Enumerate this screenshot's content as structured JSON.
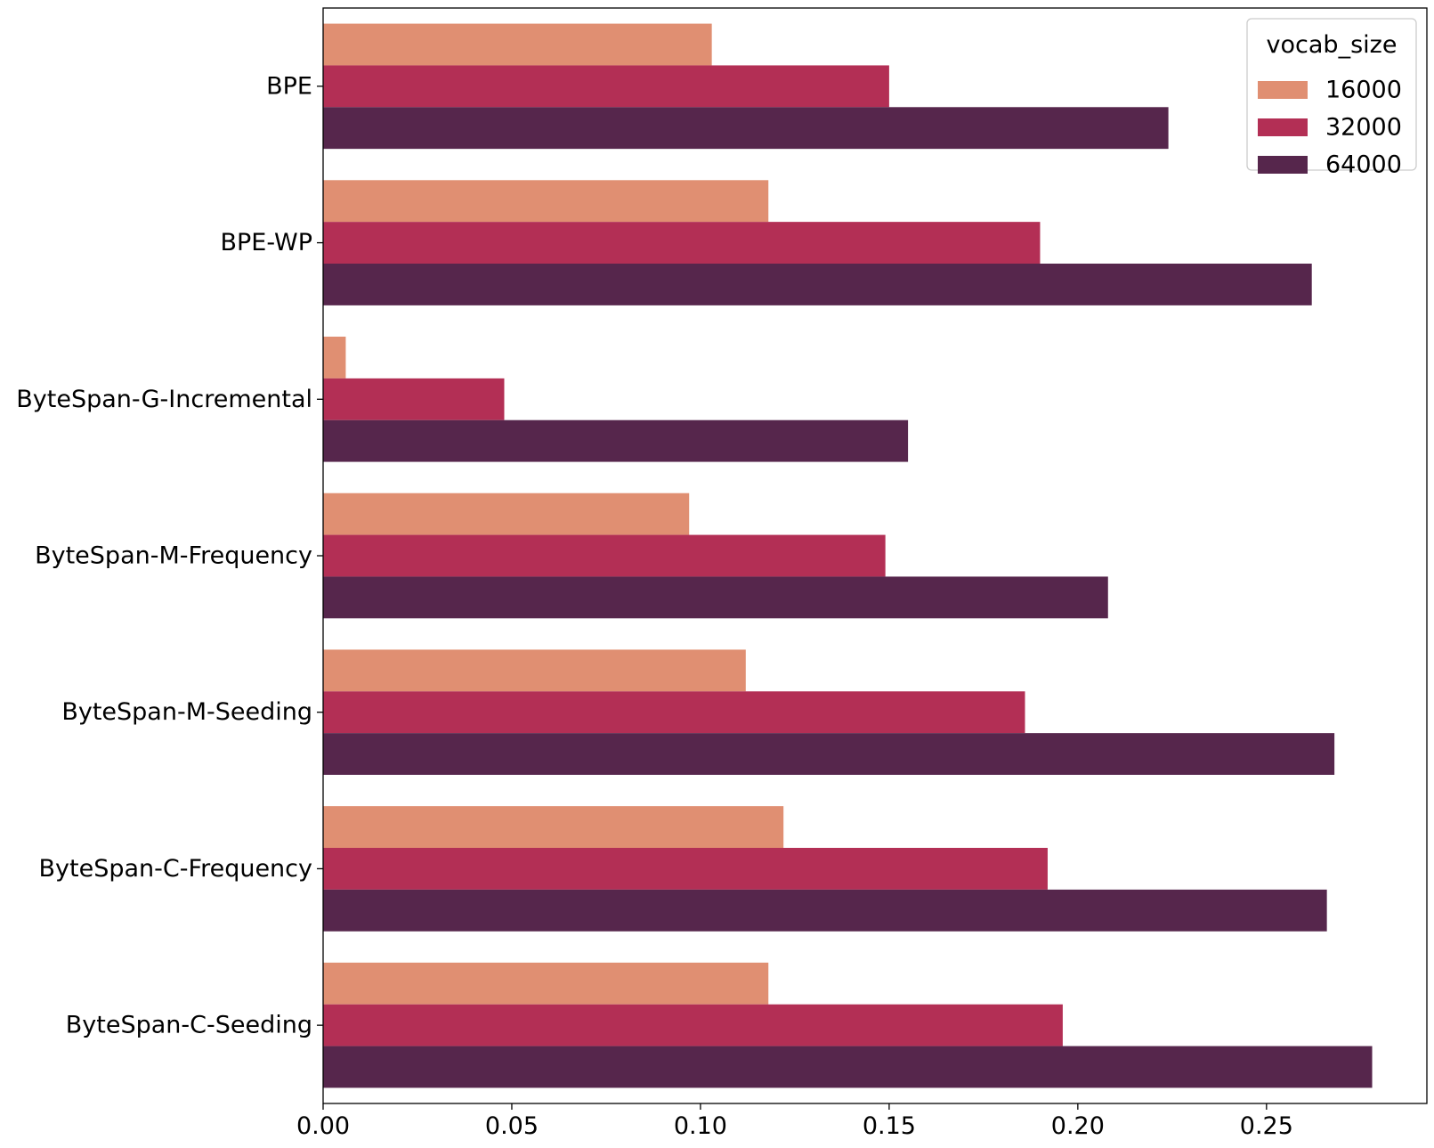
{
  "chart_data": {
    "type": "bar",
    "orientation": "horizontal",
    "title": "",
    "xlabel": "",
    "ylabel": "",
    "xlim": [
      0,
      0.2925
    ],
    "x_ticks": [
      0.0,
      0.05,
      0.1,
      0.15,
      0.2,
      0.25
    ],
    "x_tick_labels": [
      "0.00",
      "0.05",
      "0.10",
      "0.15",
      "0.20",
      "0.25"
    ],
    "grid": false,
    "categories": [
      "BPE",
      "BPE-WP",
      "ByteSpan-G-Incremental",
      "ByteSpan-M-Frequency",
      "ByteSpan-M-Seeding",
      "ByteSpan-C-Frequency",
      "ByteSpan-C-Seeding"
    ],
    "series": [
      {
        "name": "16000",
        "color": "#e08f72",
        "values": [
          0.103,
          0.118,
          0.006,
          0.097,
          0.112,
          0.122,
          0.118
        ]
      },
      {
        "name": "32000",
        "color": "#b32f55",
        "values": [
          0.15,
          0.19,
          0.048,
          0.149,
          0.186,
          0.192,
          0.196
        ]
      },
      {
        "name": "64000",
        "color": "#56264c",
        "values": [
          0.224,
          0.262,
          0.155,
          0.208,
          0.268,
          0.266,
          0.278
        ]
      }
    ],
    "legend": {
      "title": "vocab_size",
      "position": "top-right",
      "entries": [
        "16000",
        "32000",
        "64000"
      ]
    }
  }
}
